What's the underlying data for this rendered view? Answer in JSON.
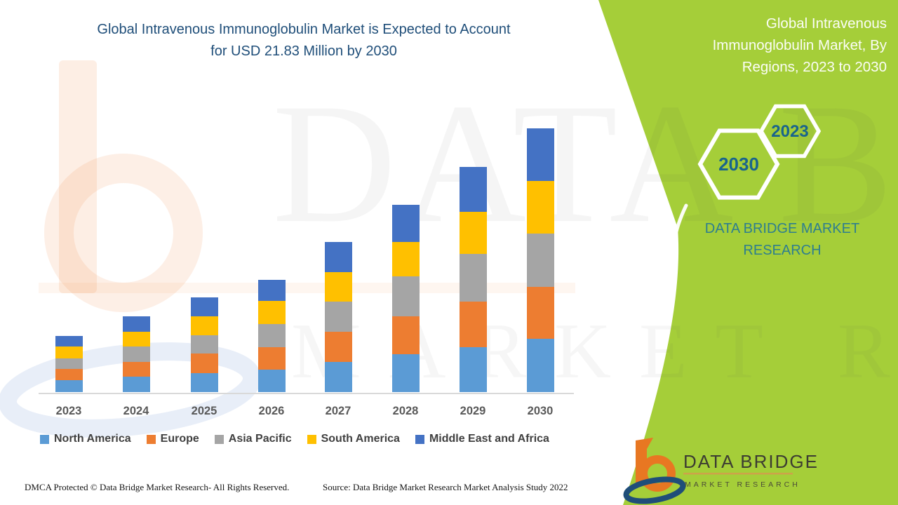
{
  "title": "Global Intravenous Immunoglobulin Market is Expected to Account for USD 21.83 Million by 2030",
  "side_panel": {
    "heading": "Global Intravenous Immunoglobulin Market, By Regions, 2023 to 2030",
    "hexagons": [
      {
        "label": "2030"
      },
      {
        "label": "2023"
      }
    ],
    "brand_text": "DATA BRIDGE MARKET RESEARCH",
    "panel_color": "#A5CE39",
    "year_text_color": "#19648C"
  },
  "watermark": {
    "line1": "DATA BRIDGE",
    "line2": "MARKET RESEARCH"
  },
  "logo": {
    "name": "DATA BRIDGE",
    "subtitle": "MARKET RESEARCH",
    "b_color": "#E87722",
    "swoosh_color": "#1F4E79",
    "underline_color": "#CDA349"
  },
  "footer": {
    "left": "DMCA Protected © Data Bridge Market Research- All Rights Reserved.",
    "right": "Source: Data Bridge Market Research Market Analysis Study 2022"
  },
  "colors": {
    "title_text": "#1F4E79",
    "axis_label": "#595959",
    "legend_label": "#404040",
    "axis_line": "#D9D9D9"
  },
  "chart_data": {
    "type": "bar",
    "stacked": true,
    "unit": "USD Million",
    "categories": [
      "2023",
      "2024",
      "2025",
      "2026",
      "2027",
      "2028",
      "2029",
      "2030"
    ],
    "series": [
      {
        "name": "North America",
        "color": "#5B9BD5",
        "values": [
          0.99,
          1.26,
          1.59,
          1.88,
          2.5,
          3.14,
          3.72,
          4.4
        ]
      },
      {
        "name": "Europe",
        "color": "#ED7D31",
        "values": [
          0.91,
          1.24,
          1.59,
          1.84,
          2.48,
          3.14,
          3.77,
          4.3
        ]
      },
      {
        "name": "Asia Pacific",
        "color": "#A5A5A5",
        "values": [
          0.91,
          1.26,
          1.51,
          1.93,
          2.51,
          3.31,
          3.95,
          4.45
        ]
      },
      {
        "name": "South America",
        "color": "#FFC000",
        "values": [
          0.97,
          1.22,
          1.59,
          1.88,
          2.42,
          2.85,
          3.5,
          4.32
        ]
      },
      {
        "name": "Middle East and Africa",
        "color": "#4472C4",
        "values": [
          0.87,
          1.29,
          1.55,
          1.78,
          2.55,
          3.04,
          3.7,
          4.35
        ]
      }
    ],
    "totals": [
      4.65,
      6.27,
      7.83,
      9.31,
      12.46,
      15.48,
      18.64,
      21.83
    ],
    "ylim": [
      0,
      22.5
    ],
    "grid": false,
    "legend_position": "bottom"
  }
}
